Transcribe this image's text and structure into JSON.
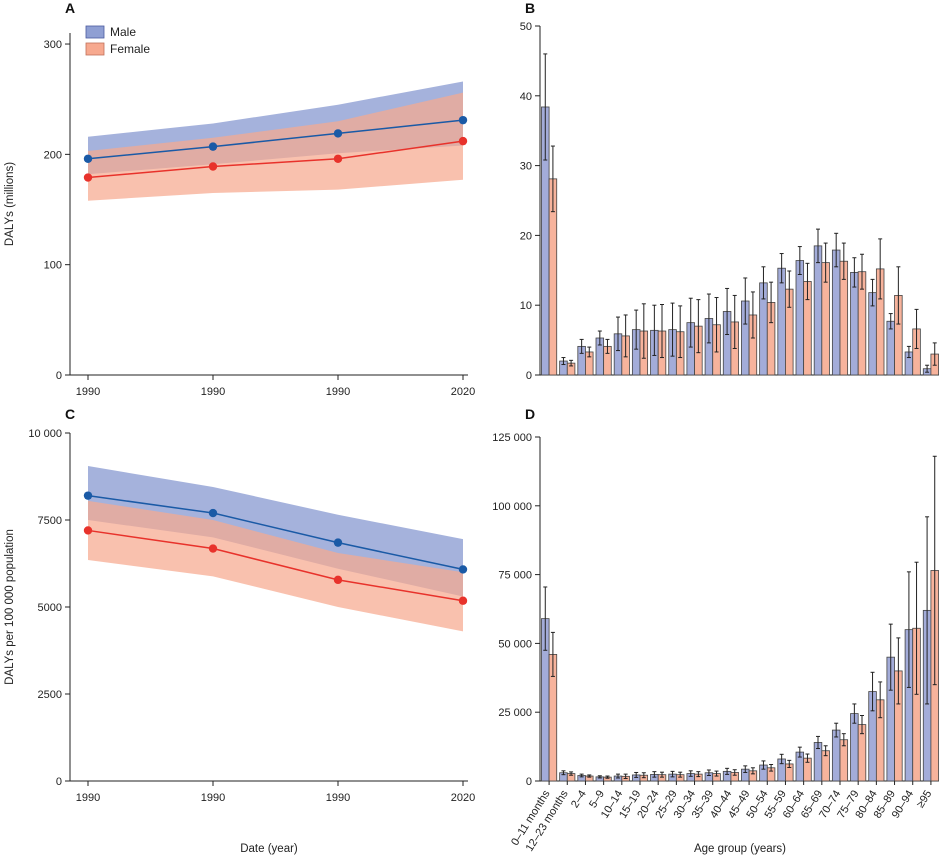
{
  "colors": {
    "male_line": "#1a5aa6",
    "female_line": "#e8322b",
    "male_fill": "#8f9fd3",
    "female_fill": "#f7a98f",
    "male_bar": "#a3acd9",
    "female_bar": "#f7b39c"
  },
  "legend": {
    "male": "Male",
    "female": "Female"
  },
  "chart_data": [
    {
      "panel": "A",
      "type": "line",
      "xlabel": "",
      "ylabel": "DALYs (millions)",
      "ylim": [
        0,
        310
      ],
      "yticks": [
        0,
        100,
        200,
        300
      ],
      "x_tick_labels": [
        "1990",
        "1990",
        "1990",
        "2020"
      ],
      "legend_position": "top-left",
      "series": [
        {
          "name": "Male",
          "values": [
            196,
            207,
            219,
            231
          ],
          "lower": [
            182,
            191,
            201,
            208
          ],
          "upper": [
            216,
            228,
            245,
            266
          ]
        },
        {
          "name": "Female",
          "values": [
            179,
            189,
            196,
            212
          ],
          "lower": [
            158,
            165,
            168,
            177
          ],
          "upper": [
            203,
            215,
            230,
            256
          ]
        }
      ]
    },
    {
      "panel": "B",
      "type": "bar",
      "ylim": [
        0,
        50
      ],
      "yticks": [
        0,
        10,
        20,
        30,
        40,
        50
      ],
      "categories": [
        "0–11 months",
        "12–23 months",
        "2–4",
        "5–9",
        "10–14",
        "15–19",
        "20–24",
        "25–29",
        "30–34",
        "35–39",
        "40–44",
        "45–49",
        "50–54",
        "55–59",
        "60–64",
        "65–69",
        "70–74",
        "75–79",
        "80–84",
        "85–89",
        "90–94",
        "≥95"
      ],
      "series": [
        {
          "name": "Male",
          "values": [
            38.4,
            2.0,
            4.1,
            5.3,
            5.9,
            6.5,
            6.4,
            6.5,
            7.5,
            8.1,
            9.1,
            10.6,
            13.2,
            15.3,
            16.4,
            18.5,
            17.9,
            14.7,
            11.8,
            7.7,
            3.3,
            0.9
          ],
          "errors": [
            7.6,
            0.5,
            1.0,
            1.0,
            2.4,
            2.8,
            3.6,
            3.8,
            3.5,
            3.5,
            3.3,
            3.3,
            2.3,
            2.1,
            2.0,
            2.4,
            2.4,
            2.1,
            1.9,
            1.1,
            0.8,
            0.5
          ]
        },
        {
          "name": "Female",
          "values": [
            28.1,
            1.7,
            3.3,
            4.1,
            5.6,
            6.3,
            6.3,
            6.2,
            7.0,
            7.2,
            7.6,
            8.6,
            10.4,
            12.3,
            13.4,
            16.1,
            16.3,
            14.8,
            15.2,
            11.4,
            6.6,
            3.0
          ],
          "errors": [
            4.7,
            0.4,
            0.7,
            1.0,
            3.0,
            3.9,
            3.8,
            3.7,
            3.8,
            3.9,
            3.8,
            3.3,
            2.9,
            2.6,
            2.6,
            2.8,
            2.6,
            2.5,
            4.3,
            4.1,
            2.8,
            1.6
          ]
        }
      ]
    },
    {
      "panel": "C",
      "type": "line",
      "xlabel": "Date (year)",
      "ylabel": "DALYs per 100 000 population",
      "ylim": [
        0,
        10000
      ],
      "yticks": [
        0,
        2500,
        5000,
        7500,
        10000
      ],
      "ytick_labels": [
        "0",
        "2500",
        "5000",
        "7500",
        "10 000"
      ],
      "x_tick_labels": [
        "1990",
        "1990",
        "1990",
        "2020"
      ],
      "series": [
        {
          "name": "Male",
          "values": [
            8200,
            7700,
            6850,
            6080
          ],
          "lower": [
            7500,
            7000,
            6100,
            5300
          ],
          "upper": [
            9050,
            8450,
            7650,
            6950
          ]
        },
        {
          "name": "Female",
          "values": [
            7200,
            6680,
            5780,
            5180
          ],
          "lower": [
            6350,
            5880,
            5000,
            4300
          ],
          "upper": [
            8050,
            7500,
            6550,
            6000
          ]
        }
      ]
    },
    {
      "panel": "D",
      "type": "bar",
      "xlabel": "Age group (years)",
      "ylim": [
        0,
        125000
      ],
      "yticks": [
        0,
        25000,
        50000,
        75000,
        100000,
        125000
      ],
      "ytick_labels": [
        "0",
        "25 000",
        "50 000",
        "75 000",
        "100 000",
        "125 000"
      ],
      "categories": [
        "0–11 months",
        "12–23 months",
        "2–4",
        "5–9",
        "10–14",
        "15–19",
        "20–24",
        "25–29",
        "30–34",
        "35–39",
        "40–44",
        "45–49",
        "50–54",
        "55–59",
        "60–64",
        "65–69",
        "70–74",
        "75–79",
        "80–84",
        "85–89",
        "90–94",
        "≥95"
      ],
      "series": [
        {
          "name": "Male",
          "values": [
            59000,
            3000,
            2000,
            1500,
            1800,
            2200,
            2400,
            2500,
            2700,
            3000,
            3500,
            4300,
            5800,
            8000,
            10500,
            14000,
            18500,
            24500,
            32500,
            45000,
            55000,
            62000
          ],
          "errors": [
            11500,
            700,
            500,
            400,
            700,
            900,
            1000,
            1000,
            1000,
            1000,
            1100,
            1200,
            1500,
            1700,
            1800,
            2200,
            2500,
            3500,
            7000,
            12000,
            21000,
            34000
          ]
        },
        {
          "name": "Female",
          "values": [
            46000,
            2700,
            1800,
            1400,
            1700,
            2100,
            2300,
            2300,
            2500,
            2700,
            3100,
            3700,
            4800,
            6200,
            8300,
            11000,
            15000,
            20500,
            29500,
            40000,
            55500,
            76500
          ],
          "errors": [
            8000,
            600,
            400,
            400,
            800,
            900,
            900,
            900,
            900,
            900,
            1000,
            1100,
            1200,
            1300,
            1500,
            1800,
            2200,
            3300,
            6500,
            12000,
            24000,
            41500
          ]
        }
      ]
    }
  ]
}
